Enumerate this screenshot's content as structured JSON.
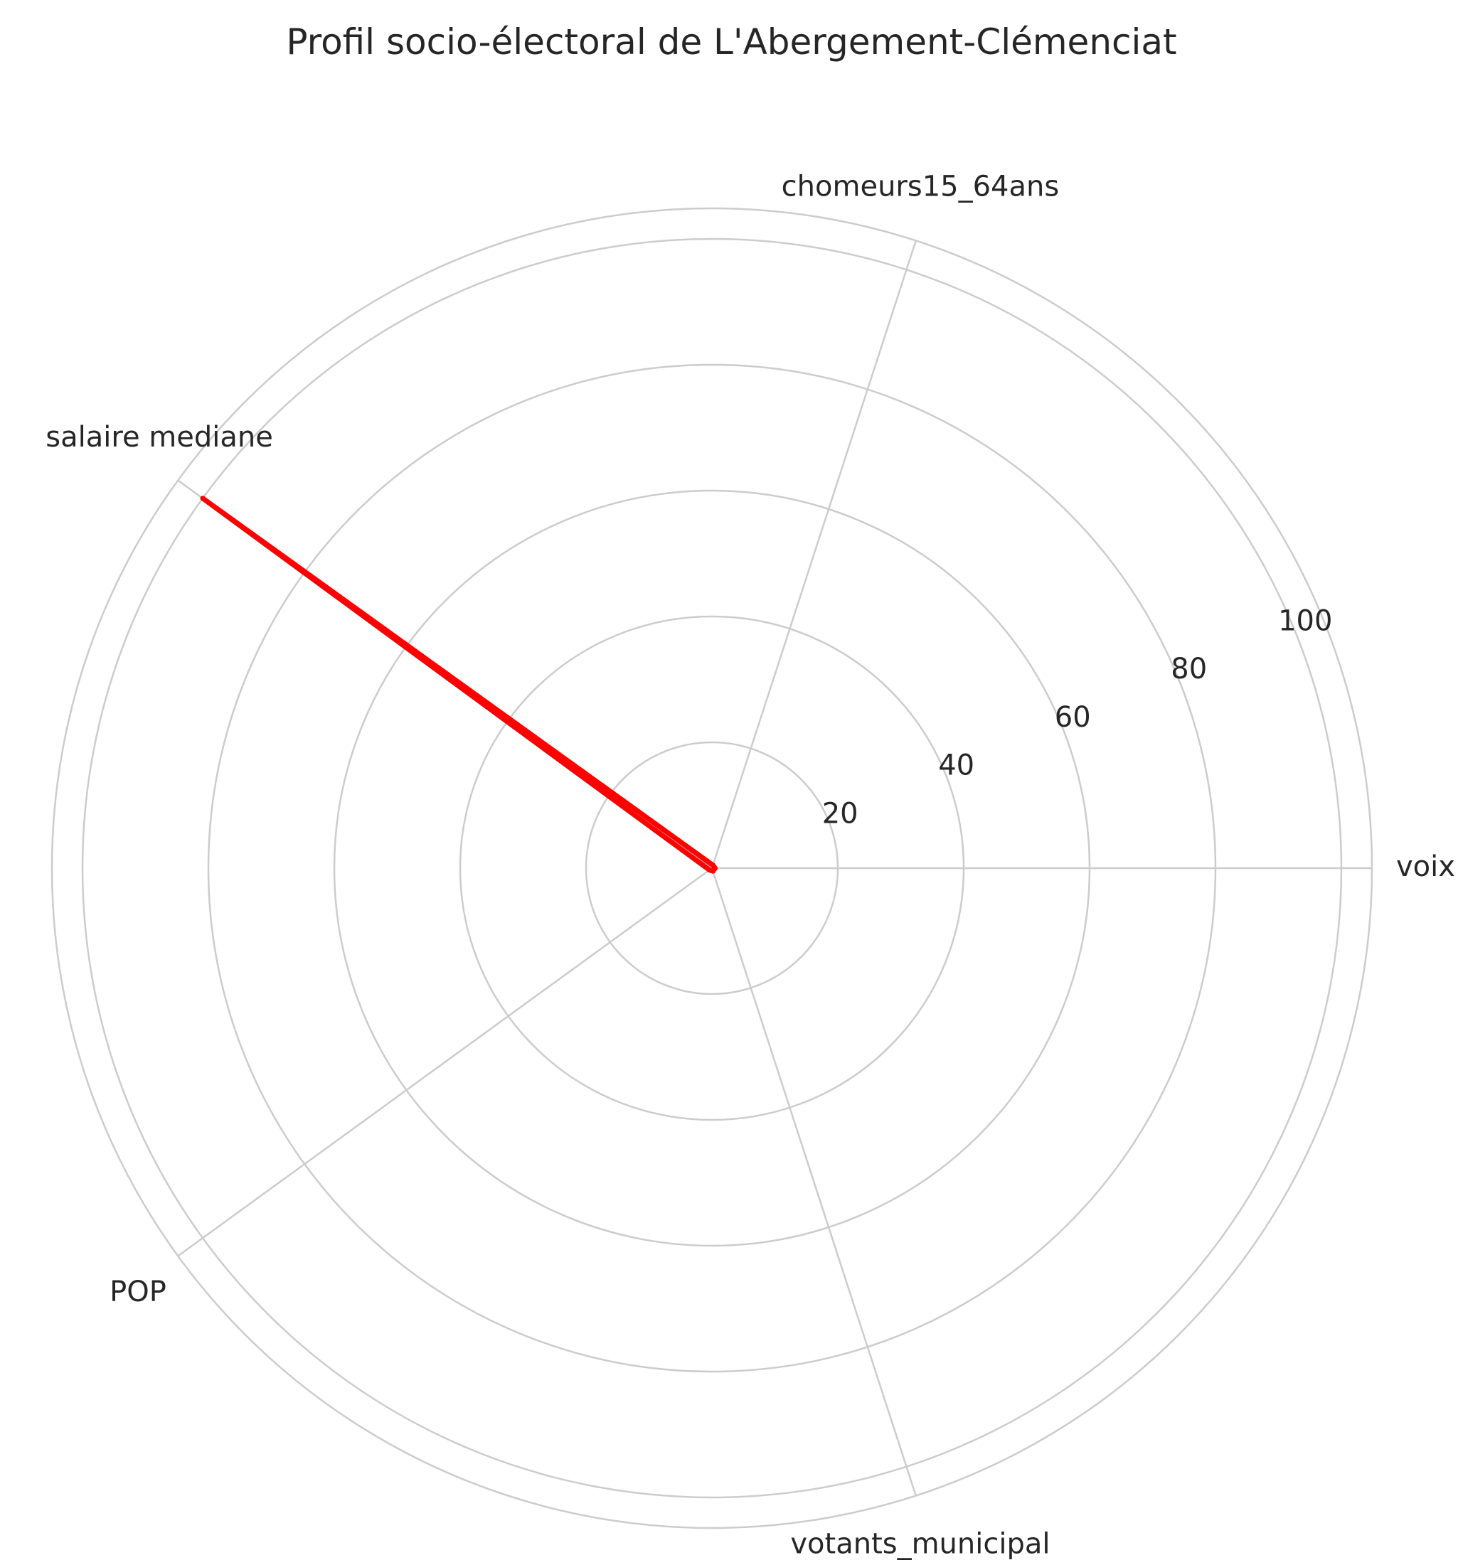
{
  "chart_data": {
    "type": "radar",
    "title": "Profil socio-électoral de L'Abergement-Clémenciat",
    "categories": [
      "voix",
      "chomeurs15_64ans",
      "salaire mediane",
      "POP",
      "votants_municipal"
    ],
    "series": [
      {
        "values": [
          0.5,
          0.5,
          100,
          0.5,
          0.5
        ],
        "color": "#ff0000"
      }
    ],
    "rlim": [
      0,
      100
    ],
    "rticks": [
      20,
      40,
      60,
      80,
      100
    ],
    "grid": true,
    "colors": {
      "series_line": "#ff0000",
      "series_fill": "#ff0000",
      "grid": "#cccccc",
      "text": "#262626",
      "background": "#ffffff"
    }
  }
}
